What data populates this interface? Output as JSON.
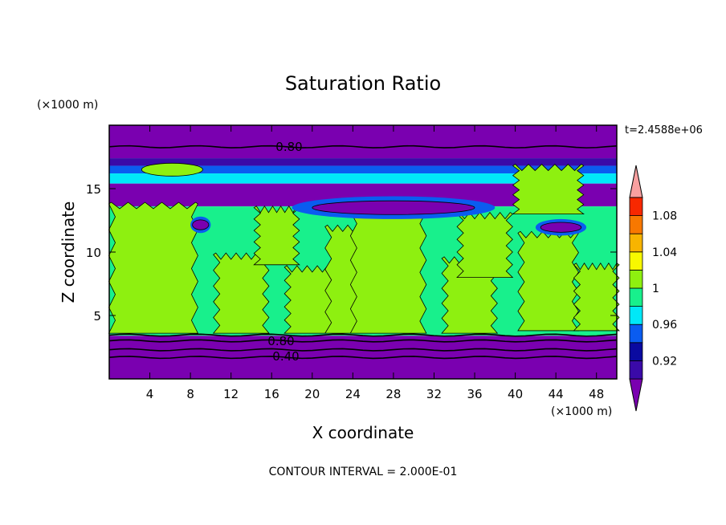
{
  "chart_data": {
    "type": "heatmap",
    "title": "Saturation Ratio",
    "xlabel": "X coordinate",
    "ylabel": "Z coordinate",
    "x_units": "(×1000 m)",
    "y_units": "(×1000 m)",
    "time_label": "t=2.4588e+06",
    "footer": "CONTOUR INTERVAL = 2.000E-01",
    "xlim": [
      0,
      50
    ],
    "ylim": [
      0,
      20
    ],
    "x_ticks": [
      "4",
      "8",
      "12",
      "16",
      "20",
      "24",
      "28",
      "32",
      "36",
      "40",
      "44",
      "48"
    ],
    "y_ticks": [
      "5",
      "10",
      "15"
    ],
    "contour_labels": [
      "0.80",
      "0.80",
      "0.40"
    ],
    "colorbar": {
      "labels": [
        "0.92",
        "0.96",
        "1",
        "1.04",
        "1.08"
      ],
      "bins": [
        {
          "label": "",
          "color": "#7a00b0"
        },
        {
          "label": "",
          "color": "#3a0aa8"
        },
        {
          "label": "",
          "color": "#0a0aa0"
        },
        {
          "label": "",
          "color": "#0a5cf0"
        },
        {
          "label": "",
          "color": "#00e8f8"
        },
        {
          "label": "",
          "color": "#18f08c"
        },
        {
          "label": "",
          "color": "#8ef010"
        },
        {
          "label": "",
          "color": "#f8f800"
        },
        {
          "label": "",
          "color": "#f8b400"
        },
        {
          "label": "",
          "color": "#f87800"
        },
        {
          "label": "",
          "color": "#f82800"
        },
        {
          "label": "",
          "color": "#f8a0a0"
        }
      ]
    },
    "bands": [
      {
        "z_top": 20.0,
        "z_bottom": 17.4,
        "color": "#7a00b0"
      },
      {
        "z_top": 17.4,
        "z_bottom": 16.8,
        "color": "#3a0aa8"
      },
      {
        "z_top": 16.8,
        "z_bottom": 16.2,
        "color": "#0a5cf0"
      },
      {
        "z_top": 16.2,
        "z_bottom": 15.4,
        "color": "#00e8f8"
      },
      {
        "z_top": 15.4,
        "z_bottom": 13.6,
        "color": "#7a00b0"
      },
      {
        "z_top": 13.6,
        "z_bottom": 3.4,
        "color": "#18f08c"
      },
      {
        "z_top": 3.4,
        "z_bottom": 0.0,
        "color": "#7a00b0"
      }
    ],
    "green_regions": [
      {
        "x0": 0.2,
        "x1": 8.5,
        "z0": 3.6,
        "z1": 13.8
      },
      {
        "x0": 10.5,
        "x1": 15.5,
        "z0": 3.6,
        "z1": 9.8
      },
      {
        "x0": 14.5,
        "x1": 18.5,
        "z0": 9.0,
        "z1": 13.5
      },
      {
        "x0": 17.5,
        "x1": 22.5,
        "z0": 3.6,
        "z1": 8.8
      },
      {
        "x0": 21.5,
        "x1": 26.5,
        "z0": 3.6,
        "z1": 12.0
      },
      {
        "x0": 24.0,
        "x1": 31.0,
        "z0": 3.6,
        "z1": 13.2
      },
      {
        "x0": 33.0,
        "x1": 38.0,
        "z0": 3.6,
        "z1": 9.5
      },
      {
        "x0": 34.5,
        "x1": 39.5,
        "z0": 8.0,
        "z1": 13.0
      },
      {
        "x0": 40.5,
        "x1": 46.0,
        "z0": 3.8,
        "z1": 11.5
      },
      {
        "x0": 40.0,
        "x1": 46.5,
        "z0": 13.0,
        "z1": 16.8
      },
      {
        "x0": 46.0,
        "x1": 50.0,
        "z0": 3.8,
        "z1": 9.0
      }
    ],
    "dry_patches": [
      {
        "x0": 8.0,
        "x1": 10.0,
        "z0": 11.5,
        "z1": 12.8
      },
      {
        "x0": 42.0,
        "x1": 47.0,
        "z0": 11.3,
        "z1": 12.6
      },
      {
        "x0": 18.0,
        "x1": 38.0,
        "z0": 12.6,
        "z1": 14.4
      }
    ]
  }
}
